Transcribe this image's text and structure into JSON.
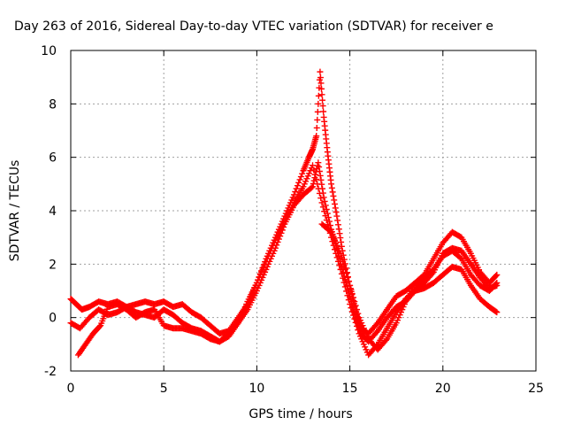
{
  "chart_data": {
    "type": "scatter",
    "title": "Day 263 of 2016, Sidereal Day-to-day VTEC variation (SDTVAR) for receiver e",
    "xlabel": "GPS time / hours",
    "ylabel": "SDTVAR / TECUs",
    "xlim": [
      0,
      25
    ],
    "ylim": [
      -2,
      10
    ],
    "xticks": [
      0,
      5,
      10,
      15,
      20,
      25
    ],
    "yticks": [
      -2,
      0,
      2,
      4,
      6,
      8,
      10
    ],
    "grid": true,
    "marker": "plus",
    "series_color": "#ff0000",
    "series": [
      {
        "name": "track-1",
        "x": [
          0.0,
          0.3,
          0.6,
          1.0,
          1.5,
          2.0,
          2.5,
          3.0,
          3.5,
          4.0,
          4.5,
          5.0,
          5.5,
          6.0,
          6.5,
          7.0,
          7.5,
          8.0,
          8.5,
          9.0,
          9.5,
          10.0,
          10.5,
          11.0,
          11.5,
          12.0,
          12.5,
          12.8,
          13.0,
          13.2,
          13.4,
          13.6,
          13.8,
          14.0,
          14.3,
          14.6,
          15.0,
          15.3,
          15.6,
          16.0,
          16.5,
          17.0,
          17.5,
          18.0,
          18.5,
          19.0,
          19.5,
          20.0,
          20.5,
          21.0,
          21.5,
          22.0,
          22.5,
          22.9
        ],
        "y": [
          0.7,
          0.5,
          0.3,
          0.4,
          0.6,
          0.5,
          0.6,
          0.4,
          0.5,
          0.6,
          0.5,
          0.6,
          0.4,
          0.5,
          0.2,
          0.0,
          -0.3,
          -0.6,
          -0.5,
          0.0,
          0.5,
          1.3,
          2.2,
          3.0,
          3.8,
          4.6,
          5.5,
          6.0,
          6.3,
          6.8,
          9.2,
          7.5,
          6.2,
          5.0,
          3.8,
          2.5,
          1.2,
          0.3,
          -0.4,
          -0.6,
          -0.2,
          0.3,
          0.8,
          1.0,
          1.3,
          1.6,
          2.2,
          2.8,
          3.2,
          3.0,
          2.4,
          1.7,
          1.3,
          1.6
        ]
      },
      {
        "name": "track-2",
        "x": [
          0.0,
          0.5,
          1.0,
          1.5,
          2.0,
          2.5,
          3.0,
          3.5,
          4.0,
          4.5,
          5.0,
          5.5,
          6.0,
          6.5,
          7.0,
          7.5,
          8.0,
          8.5,
          9.0,
          9.5,
          10.0,
          10.5,
          11.0,
          11.5,
          12.0,
          12.5,
          13.0,
          13.3,
          13.6,
          14.0,
          14.3,
          14.6,
          15.0,
          15.3,
          15.6,
          16.0,
          16.5,
          17.0,
          17.5,
          18.0,
          18.5,
          19.0,
          19.5,
          20.0,
          20.5,
          21.0,
          21.5,
          22.0,
          22.5,
          22.9
        ],
        "y": [
          -0.2,
          -0.4,
          0.0,
          0.3,
          0.1,
          0.2,
          0.4,
          0.2,
          0.1,
          0.0,
          0.3,
          0.1,
          -0.2,
          -0.4,
          -0.5,
          -0.7,
          -0.9,
          -0.7,
          -0.2,
          0.3,
          1.0,
          1.8,
          2.6,
          3.5,
          4.2,
          4.6,
          4.9,
          5.8,
          4.5,
          3.3,
          2.6,
          1.8,
          0.8,
          0.0,
          -0.6,
          -0.9,
          -0.5,
          0.0,
          0.4,
          0.6,
          1.0,
          1.3,
          1.7,
          2.4,
          2.6,
          2.5,
          2.0,
          1.5,
          1.1,
          1.2
        ]
      },
      {
        "name": "track-3",
        "x": [
          0.4,
          0.8,
          1.2,
          1.6,
          2.0,
          2.5,
          3.0,
          3.5,
          4.0,
          4.5,
          5.0,
          5.5,
          6.0,
          6.5,
          7.0,
          7.5,
          8.0,
          8.5,
          9.0,
          9.5,
          10.0,
          10.5,
          11.0,
          11.5,
          12.0,
          12.5,
          13.0,
          13.5,
          14.0,
          14.5,
          15.0,
          15.5,
          16.0,
          16.5,
          17.0,
          17.5,
          18.0,
          18.5,
          19.0,
          19.5,
          20.0,
          20.5,
          21.0,
          21.5,
          22.0,
          22.5,
          22.9
        ],
        "y": [
          -1.4,
          -1.0,
          -0.6,
          -0.3,
          0.4,
          0.5,
          0.3,
          0.0,
          0.2,
          0.3,
          -0.3,
          -0.4,
          -0.4,
          -0.5,
          -0.6,
          -0.8,
          -0.9,
          -0.6,
          -0.2,
          0.6,
          1.3,
          2.1,
          2.9,
          3.6,
          4.3,
          4.9,
          5.7,
          4.3,
          3.0,
          1.8,
          0.5,
          -0.6,
          -1.4,
          -1.0,
          -0.4,
          0.2,
          0.7,
          1.0,
          1.1,
          1.3,
          1.6,
          1.9,
          1.8,
          1.2,
          0.7,
          0.4,
          0.2
        ]
      },
      {
        "name": "track-4",
        "x": [
          13.5,
          14.0,
          14.5,
          15.0,
          15.5,
          16.0,
          16.5,
          17.0,
          17.5,
          18.0,
          18.5,
          19.0,
          19.5,
          20.0,
          20.5,
          21.0,
          21.5,
          22.0,
          22.5,
          22.9
        ],
        "y": [
          3.5,
          3.2,
          2.4,
          1.2,
          0.0,
          -0.8,
          -1.2,
          -0.8,
          -0.2,
          0.6,
          1.2,
          1.5,
          1.8,
          2.3,
          2.5,
          2.2,
          1.6,
          1.2,
          1.0,
          1.3
        ]
      }
    ]
  }
}
